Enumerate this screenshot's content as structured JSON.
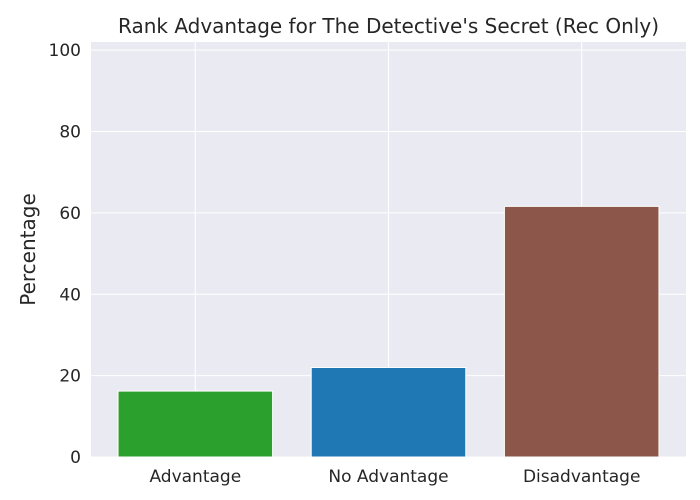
{
  "chart_data": {
    "type": "bar",
    "title": "Rank Advantage for The Detective's Secret (Rec Only)",
    "xlabel": "",
    "ylabel": "Percentage",
    "categories": [
      "Advantage",
      "No Advantage",
      "Disadvantage"
    ],
    "values": [
      16.2,
      22.0,
      61.6
    ],
    "colors": [
      "#2ca02c",
      "#1f77b4",
      "#8c564b"
    ],
    "ylim": [
      0,
      102
    ],
    "yticks": [
      0,
      20,
      40,
      60,
      80,
      100
    ],
    "grid": true,
    "background": "#eaeaf2"
  }
}
